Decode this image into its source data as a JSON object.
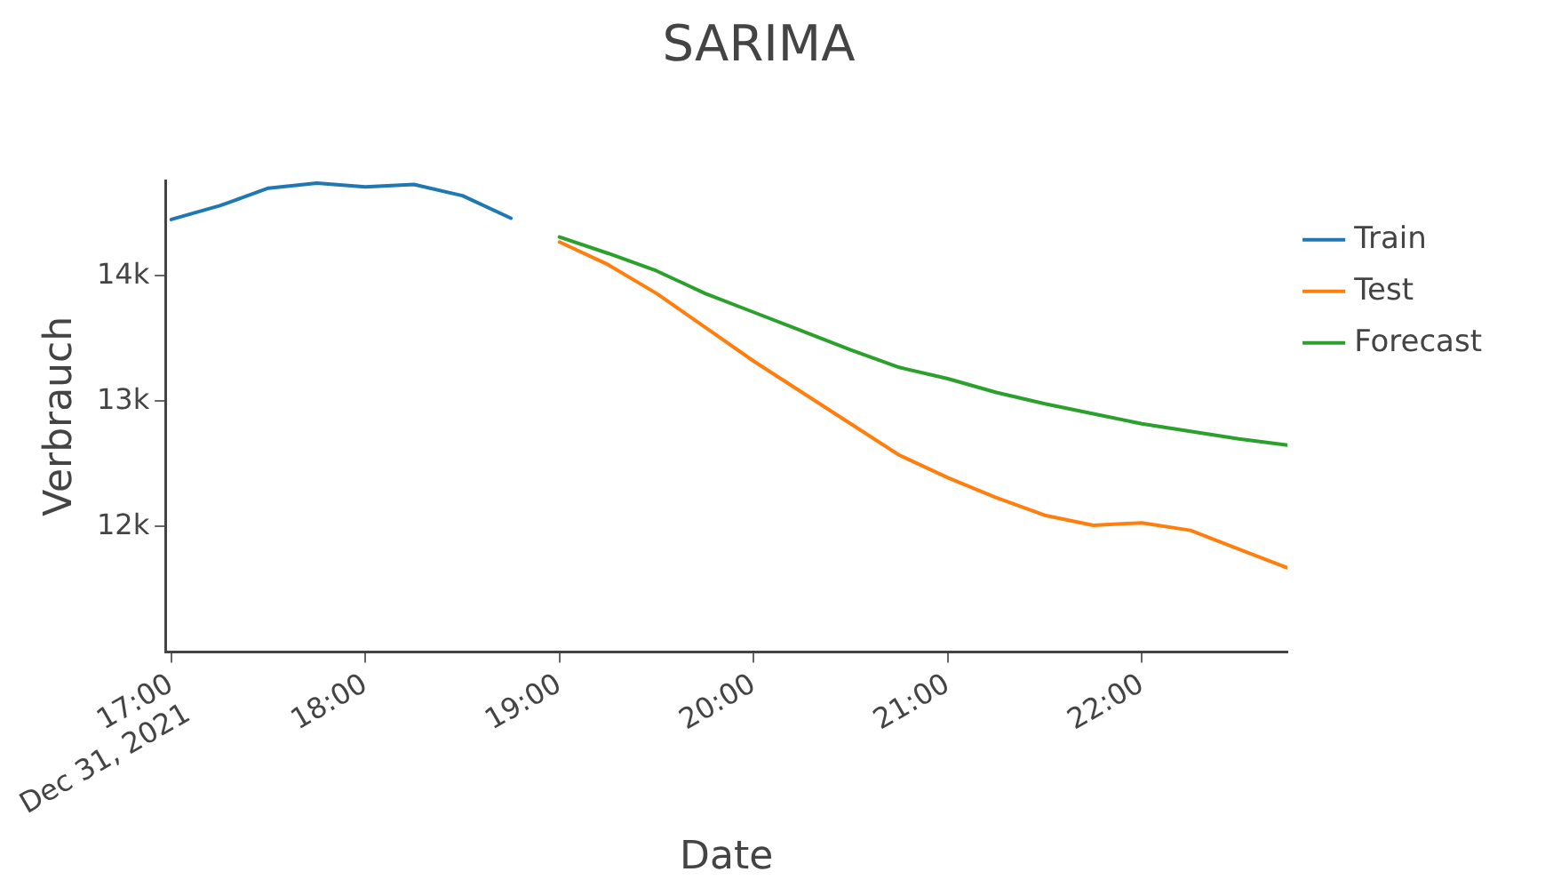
{
  "chart_data": {
    "type": "line",
    "title": "SARIMA",
    "xlabel": "Date",
    "ylabel": "Verbrauch",
    "xlim": [
      16.97,
      22.75
    ],
    "xticks": [
      {
        "value": 17,
        "label": "17:00\nDec 31, 2021"
      },
      {
        "value": 18,
        "label": "18:00"
      },
      {
        "value": 19,
        "label": "19:00"
      },
      {
        "value": 20,
        "label": "20:00"
      },
      {
        "value": 21,
        "label": "21:00"
      },
      {
        "value": 22,
        "label": "22:00"
      }
    ],
    "ylim": [
      11000,
      14760
    ],
    "yticks": [
      {
        "value": 12000,
        "label": "12k"
      },
      {
        "value": 13000,
        "label": "13k"
      },
      {
        "value": 14000,
        "label": "14k"
      }
    ],
    "grid": false,
    "legend": "top right",
    "marker": "none",
    "line_style": "solid",
    "series": [
      {
        "name": "Train",
        "color": "#1f77b4",
        "x": [
          17,
          17.25,
          17.5,
          17.75,
          18,
          18.25,
          18.5,
          18.75
        ],
        "values": [
          14450,
          14560,
          14700,
          14740,
          14710,
          14730,
          14640,
          14460
        ]
      },
      {
        "name": "Test",
        "color": "#ff7f0e",
        "x": [
          19,
          19.25,
          19.5,
          19.75,
          20,
          20.25,
          20.5,
          20.75,
          21,
          21.25,
          21.5,
          21.75,
          22,
          22.25,
          22.5,
          22.75
        ],
        "values": [
          14270,
          14090,
          13860,
          13590,
          13320,
          13070,
          12820,
          12570,
          12390,
          12230,
          12090,
          12010,
          12030,
          11970,
          11820,
          11670
        ]
      },
      {
        "name": "Forecast",
        "color": "#2ca02c",
        "x": [
          19,
          19.25,
          19.5,
          19.75,
          20,
          20.25,
          20.5,
          20.75,
          21,
          21.25,
          21.5,
          21.75,
          22,
          22.25,
          22.5,
          22.75
        ],
        "values": [
          14310,
          14180,
          14040,
          13860,
          13710,
          13560,
          13410,
          13270,
          13180,
          13070,
          12980,
          12900,
          12820,
          12760,
          12700,
          12650
        ]
      }
    ]
  }
}
